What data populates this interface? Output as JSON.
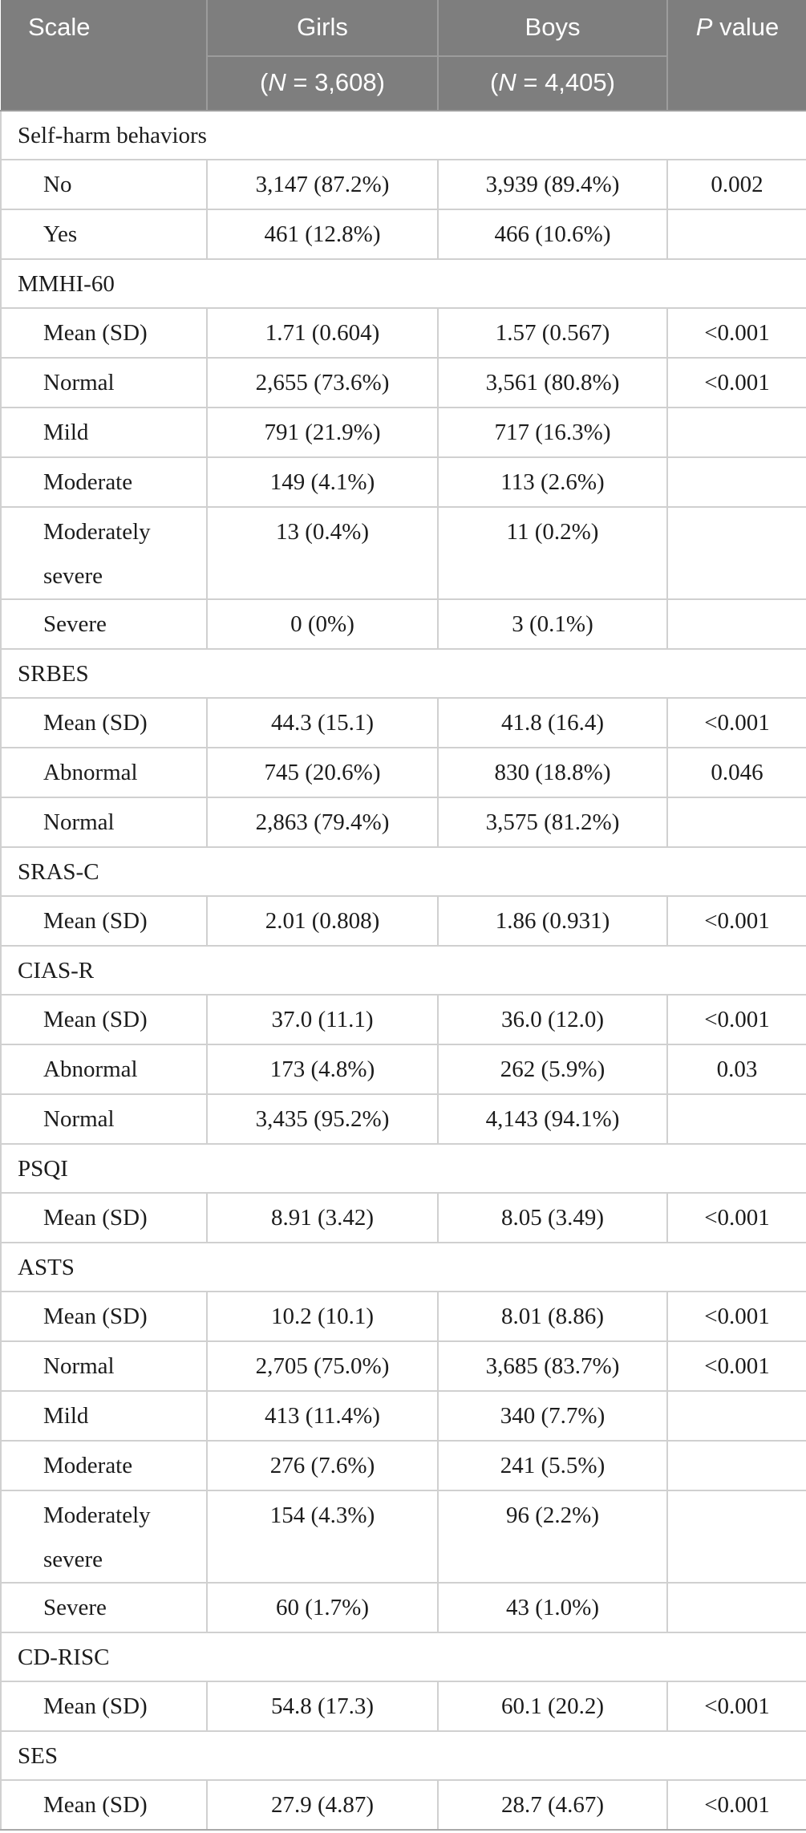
{
  "colors": {
    "header_background": "#7e7e7e",
    "header_text": "#ffffff",
    "header_divider": "#9c9c9c",
    "body_grid": "#d0d0d0",
    "body_text": "#1c1c1c"
  },
  "table": {
    "header": {
      "scale": "Scale",
      "girls": "Girls",
      "boys": "Boys",
      "n_open": "(",
      "n_italic": "N",
      "girls_n_rest": " = 3,608)",
      "boys_n_rest": " = 4,405)",
      "p_italic": "P",
      "p_rest": " value"
    },
    "rows": [
      {
        "type": "section",
        "label": "Self-harm behaviors"
      },
      {
        "type": "data",
        "label": "No",
        "girls": "3,147 (87.2%)",
        "boys": "3,939 (89.4%)",
        "p": "0.002"
      },
      {
        "type": "data",
        "label": "Yes",
        "girls": "461 (12.8%)",
        "boys": "466 (10.6%)",
        "p": ""
      },
      {
        "type": "section",
        "label": "MMHI-60"
      },
      {
        "type": "data",
        "label": "Mean (SD)",
        "girls": "1.71 (0.604)",
        "boys": "1.57 (0.567)",
        "p": "<0.001"
      },
      {
        "type": "data",
        "label": "Normal",
        "girls": "2,655 (73.6%)",
        "boys": "3,561 (80.8%)",
        "p": "<0.001"
      },
      {
        "type": "data",
        "label": "Mild",
        "girls": "791 (21.9%)",
        "boys": "717 (16.3%)",
        "p": ""
      },
      {
        "type": "data",
        "label": "Moderate",
        "girls": "149 (4.1%)",
        "boys": "113 (2.6%)",
        "p": ""
      },
      {
        "type": "data",
        "label": "Moderately severe",
        "girls": "13 (0.4%)",
        "boys": "11 (0.2%)",
        "p": "",
        "tall": true
      },
      {
        "type": "data",
        "label": "Severe",
        "girls": "0 (0%)",
        "boys": "3 (0.1%)",
        "p": ""
      },
      {
        "type": "section",
        "label": "SRBES"
      },
      {
        "type": "data",
        "label": "Mean (SD)",
        "girls": "44.3 (15.1)",
        "boys": "41.8 (16.4)",
        "p": "<0.001"
      },
      {
        "type": "data",
        "label": "Abnormal",
        "girls": "745 (20.6%)",
        "boys": "830 (18.8%)",
        "p": "0.046"
      },
      {
        "type": "data",
        "label": "Normal",
        "girls": "2,863 (79.4%)",
        "boys": "3,575 (81.2%)",
        "p": ""
      },
      {
        "type": "section",
        "label": "SRAS-C"
      },
      {
        "type": "data",
        "label": "Mean (SD)",
        "girls": "2.01 (0.808)",
        "boys": "1.86 (0.931)",
        "p": "<0.001"
      },
      {
        "type": "section",
        "label": "CIAS-R"
      },
      {
        "type": "data",
        "label": "Mean (SD)",
        "girls": "37.0 (11.1)",
        "boys": "36.0 (12.0)",
        "p": "<0.001"
      },
      {
        "type": "data",
        "label": "Abnormal",
        "girls": "173 (4.8%)",
        "boys": "262 (5.9%)",
        "p": "0.03"
      },
      {
        "type": "data",
        "label": "Normal",
        "girls": "3,435 (95.2%)",
        "boys": "4,143 (94.1%)",
        "p": ""
      },
      {
        "type": "section",
        "label": "PSQI"
      },
      {
        "type": "data",
        "label": "Mean (SD)",
        "girls": "8.91 (3.42)",
        "boys": "8.05 (3.49)",
        "p": "<0.001"
      },
      {
        "type": "section",
        "label": "ASTS"
      },
      {
        "type": "data",
        "label": "Mean (SD)",
        "girls": "10.2 (10.1)",
        "boys": "8.01 (8.86)",
        "p": "<0.001"
      },
      {
        "type": "data",
        "label": "Normal",
        "girls": "2,705 (75.0%)",
        "boys": "3,685 (83.7%)",
        "p": "<0.001"
      },
      {
        "type": "data",
        "label": "Mild",
        "girls": "413 (11.4%)",
        "boys": "340 (7.7%)",
        "p": ""
      },
      {
        "type": "data",
        "label": "Moderate",
        "girls": "276 (7.6%)",
        "boys": "241 (5.5%)",
        "p": ""
      },
      {
        "type": "data",
        "label": "Moderately severe",
        "girls": "154 (4.3%)",
        "boys": "96 (2.2%)",
        "p": "",
        "tall": true
      },
      {
        "type": "data",
        "label": "Severe",
        "girls": "60 (1.7%)",
        "boys": "43 (1.0%)",
        "p": ""
      },
      {
        "type": "section",
        "label": "CD-RISC"
      },
      {
        "type": "data",
        "label": "Mean (SD)",
        "girls": "54.8 (17.3)",
        "boys": "60.1 (20.2)",
        "p": "<0.001"
      },
      {
        "type": "section",
        "label": "SES"
      },
      {
        "type": "data",
        "label": "Mean (SD)",
        "girls": "27.9 (4.87)",
        "boys": "28.7 (4.67)",
        "p": "<0.001"
      }
    ]
  }
}
